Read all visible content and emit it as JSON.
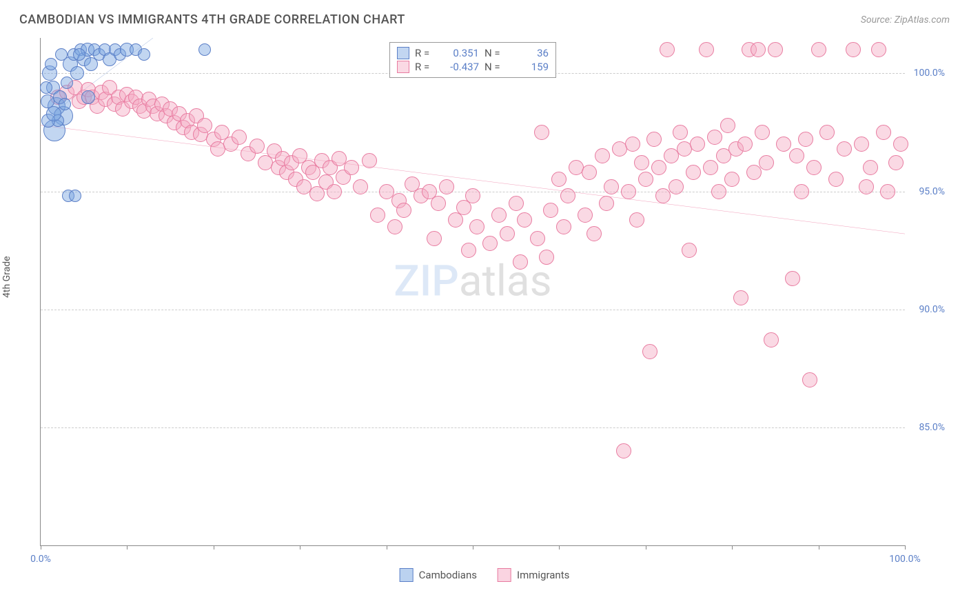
{
  "title": "CAMBODIAN VS IMMIGRANTS 4TH GRADE CORRELATION CHART",
  "source": "Source: ZipAtlas.com",
  "ylabel": "4th Grade",
  "watermark": {
    "bold": "ZIP",
    "light": "atlas"
  },
  "chart": {
    "type": "scatter",
    "xlim": [
      0,
      100
    ],
    "ylim": [
      80,
      101.5
    ],
    "xticks": [
      0,
      10,
      20,
      30,
      40,
      50,
      60,
      70,
      80,
      90,
      100
    ],
    "xticks_labeled": {
      "0": "0.0%",
      "100": "100.0%"
    },
    "yticks": [
      85,
      90,
      95,
      100
    ],
    "ytick_labels": [
      "85.0%",
      "90.0%",
      "95.0%",
      "100.0%"
    ],
    "background_color": "#ffffff",
    "grid_color": "#cccccc",
    "axis_color": "#888888",
    "tick_label_color": "#5b7fc7"
  },
  "series": {
    "cambodians": {
      "label": "Cambodians",
      "color_fill": "rgba(120,165,225,0.45)",
      "color_stroke": "#5b7fc7",
      "trend_color": "#2e5db5",
      "trend_width": 2,
      "default_radius": 9,
      "R": "0.351",
      "N": "36",
      "trend": {
        "x1": 1,
        "y1": 98.2,
        "x2": 13,
        "y2": 101.5
      },
      "points": [
        {
          "x": 1.0,
          "y": 100.0,
          "r": 11
        },
        {
          "x": 1.4,
          "y": 99.4,
          "r": 10
        },
        {
          "x": 1.8,
          "y": 98.6,
          "r": 13
        },
        {
          "x": 2.2,
          "y": 99.0,
          "r": 10
        },
        {
          "x": 2.6,
          "y": 98.2,
          "r": 14
        },
        {
          "x": 0.8,
          "y": 98.8,
          "r": 10
        },
        {
          "x": 3.0,
          "y": 99.6,
          "r": 9
        },
        {
          "x": 3.4,
          "y": 100.4,
          "r": 11
        },
        {
          "x": 3.8,
          "y": 100.8,
          "r": 9
        },
        {
          "x": 4.2,
          "y": 100.0,
          "r": 10
        },
        {
          "x": 4.6,
          "y": 101.0,
          "r": 9
        },
        {
          "x": 5.0,
          "y": 100.6,
          "r": 10
        },
        {
          "x": 5.4,
          "y": 101.0,
          "r": 10
        },
        {
          "x": 5.8,
          "y": 100.4,
          "r": 10
        },
        {
          "x": 6.2,
          "y": 101.0,
          "r": 9
        },
        {
          "x": 6.8,
          "y": 100.8,
          "r": 9
        },
        {
          "x": 7.4,
          "y": 101.0,
          "r": 9
        },
        {
          "x": 8.0,
          "y": 100.6,
          "r": 10
        },
        {
          "x": 8.6,
          "y": 101.0,
          "r": 9
        },
        {
          "x": 9.2,
          "y": 100.8,
          "r": 9
        },
        {
          "x": 10.0,
          "y": 101.0,
          "r": 10
        },
        {
          "x": 11.0,
          "y": 101.0,
          "r": 9
        },
        {
          "x": 12.0,
          "y": 100.8,
          "r": 9
        },
        {
          "x": 19.0,
          "y": 101.0,
          "r": 9
        },
        {
          "x": 1.6,
          "y": 97.6,
          "r": 16
        },
        {
          "x": 2.0,
          "y": 98.0,
          "r": 9
        },
        {
          "x": 0.6,
          "y": 99.4,
          "r": 9
        },
        {
          "x": 3.2,
          "y": 94.8,
          "r": 9
        },
        {
          "x": 4.0,
          "y": 94.8,
          "r": 9
        },
        {
          "x": 5.5,
          "y": 99.0,
          "r": 10
        },
        {
          "x": 1.2,
          "y": 100.4,
          "r": 9
        },
        {
          "x": 2.4,
          "y": 100.8,
          "r": 9
        },
        {
          "x": 0.9,
          "y": 98.0,
          "r": 10
        },
        {
          "x": 1.5,
          "y": 98.3,
          "r": 11
        },
        {
          "x": 2.8,
          "y": 98.7,
          "r": 9
        },
        {
          "x": 4.5,
          "y": 100.8,
          "r": 9
        }
      ]
    },
    "immigrants": {
      "label": "Immigrants",
      "color_fill": "rgba(245,170,195,0.45)",
      "color_stroke": "#e87ba0",
      "trend_color": "#e85b8a",
      "trend_width": 2.5,
      "default_radius": 11,
      "R": "-0.437",
      "N": "159",
      "trend": {
        "x1": 0,
        "y1": 97.8,
        "x2": 100,
        "y2": 93.2
      },
      "points": [
        {
          "x": 2,
          "y": 99.0
        },
        {
          "x": 3,
          "y": 99.2
        },
        {
          "x": 4,
          "y": 99.4
        },
        {
          "x": 4.5,
          "y": 98.8
        },
        {
          "x": 5,
          "y": 99.0
        },
        {
          "x": 5.5,
          "y": 99.3
        },
        {
          "x": 6,
          "y": 99.0
        },
        {
          "x": 6.5,
          "y": 98.6
        },
        {
          "x": 7,
          "y": 99.2
        },
        {
          "x": 7.5,
          "y": 98.9
        },
        {
          "x": 8,
          "y": 99.4
        },
        {
          "x": 8.5,
          "y": 98.7
        },
        {
          "x": 9,
          "y": 99.0
        },
        {
          "x": 9.5,
          "y": 98.5
        },
        {
          "x": 10,
          "y": 99.1
        },
        {
          "x": 10.5,
          "y": 98.8
        },
        {
          "x": 11,
          "y": 99.0
        },
        {
          "x": 11.5,
          "y": 98.6
        },
        {
          "x": 12,
          "y": 98.4
        },
        {
          "x": 12.5,
          "y": 98.9
        },
        {
          "x": 13,
          "y": 98.6
        },
        {
          "x": 13.5,
          "y": 98.3
        },
        {
          "x": 14,
          "y": 98.7
        },
        {
          "x": 14.5,
          "y": 98.2
        },
        {
          "x": 15,
          "y": 98.5
        },
        {
          "x": 15.5,
          "y": 97.9
        },
        {
          "x": 16,
          "y": 98.3
        },
        {
          "x": 16.5,
          "y": 97.7
        },
        {
          "x": 17,
          "y": 98.0
        },
        {
          "x": 17.5,
          "y": 97.5
        },
        {
          "x": 18,
          "y": 98.2
        },
        {
          "x": 18.5,
          "y": 97.4
        },
        {
          "x": 19,
          "y": 97.8
        },
        {
          "x": 20,
          "y": 97.2
        },
        {
          "x": 20.5,
          "y": 96.8
        },
        {
          "x": 21,
          "y": 97.5
        },
        {
          "x": 22,
          "y": 97.0
        },
        {
          "x": 23,
          "y": 97.3
        },
        {
          "x": 24,
          "y": 96.6
        },
        {
          "x": 25,
          "y": 96.9
        },
        {
          "x": 26,
          "y": 96.2
        },
        {
          "x": 27,
          "y": 96.7
        },
        {
          "x": 27.5,
          "y": 96.0
        },
        {
          "x": 28,
          "y": 96.4
        },
        {
          "x": 28.5,
          "y": 95.8
        },
        {
          "x": 29,
          "y": 96.2
        },
        {
          "x": 29.5,
          "y": 95.5
        },
        {
          "x": 30,
          "y": 96.5
        },
        {
          "x": 30.5,
          "y": 95.2
        },
        {
          "x": 31,
          "y": 96.0
        },
        {
          "x": 31.5,
          "y": 95.8
        },
        {
          "x": 32,
          "y": 94.9
        },
        {
          "x": 32.5,
          "y": 96.3
        },
        {
          "x": 33,
          "y": 95.4
        },
        {
          "x": 33.5,
          "y": 96.0
        },
        {
          "x": 34,
          "y": 95.0
        },
        {
          "x": 34.5,
          "y": 96.4
        },
        {
          "x": 35,
          "y": 95.6
        },
        {
          "x": 36,
          "y": 96.0
        },
        {
          "x": 37,
          "y": 95.2
        },
        {
          "x": 38,
          "y": 96.3
        },
        {
          "x": 39,
          "y": 94.0
        },
        {
          "x": 40,
          "y": 95.0
        },
        {
          "x": 41,
          "y": 93.5
        },
        {
          "x": 41.5,
          "y": 94.6
        },
        {
          "x": 42,
          "y": 94.2
        },
        {
          "x": 43,
          "y": 95.3
        },
        {
          "x": 44,
          "y": 94.8
        },
        {
          "x": 45,
          "y": 95.0
        },
        {
          "x": 45.5,
          "y": 93.0
        },
        {
          "x": 46,
          "y": 94.5
        },
        {
          "x": 47,
          "y": 95.2
        },
        {
          "x": 48,
          "y": 93.8
        },
        {
          "x": 49,
          "y": 94.3
        },
        {
          "x": 49.5,
          "y": 92.5
        },
        {
          "x": 50,
          "y": 94.8
        },
        {
          "x": 50.5,
          "y": 93.5
        },
        {
          "x": 51,
          "y": 101.0
        },
        {
          "x": 52,
          "y": 92.8
        },
        {
          "x": 53,
          "y": 94.0
        },
        {
          "x": 54,
          "y": 93.2
        },
        {
          "x": 55,
          "y": 94.5
        },
        {
          "x": 55.5,
          "y": 92.0
        },
        {
          "x": 56,
          "y": 93.8
        },
        {
          "x": 57,
          "y": 101.0
        },
        {
          "x": 57.5,
          "y": 93.0
        },
        {
          "x": 58,
          "y": 97.5
        },
        {
          "x": 58.5,
          "y": 92.2
        },
        {
          "x": 59,
          "y": 94.2
        },
        {
          "x": 60,
          "y": 95.5
        },
        {
          "x": 60.5,
          "y": 93.5
        },
        {
          "x": 61,
          "y": 94.8
        },
        {
          "x": 62,
          "y": 96.0
        },
        {
          "x": 63,
          "y": 94.0
        },
        {
          "x": 63.5,
          "y": 95.8
        },
        {
          "x": 64,
          "y": 93.2
        },
        {
          "x": 65,
          "y": 96.5
        },
        {
          "x": 65.5,
          "y": 94.5
        },
        {
          "x": 66,
          "y": 95.2
        },
        {
          "x": 67,
          "y": 96.8
        },
        {
          "x": 67.5,
          "y": 84.0
        },
        {
          "x": 68,
          "y": 95.0
        },
        {
          "x": 68.5,
          "y": 97.0
        },
        {
          "x": 69,
          "y": 93.8
        },
        {
          "x": 69.5,
          "y": 96.2
        },
        {
          "x": 70,
          "y": 95.5
        },
        {
          "x": 70.5,
          "y": 88.2
        },
        {
          "x": 71,
          "y": 97.2
        },
        {
          "x": 71.5,
          "y": 96.0
        },
        {
          "x": 72,
          "y": 94.8
        },
        {
          "x": 72.5,
          "y": 101.0
        },
        {
          "x": 73,
          "y": 96.5
        },
        {
          "x": 73.5,
          "y": 95.2
        },
        {
          "x": 74,
          "y": 97.5
        },
        {
          "x": 74.5,
          "y": 96.8
        },
        {
          "x": 75,
          "y": 92.5
        },
        {
          "x": 75.5,
          "y": 95.8
        },
        {
          "x": 76,
          "y": 97.0
        },
        {
          "x": 77,
          "y": 101.0
        },
        {
          "x": 77.5,
          "y": 96.0
        },
        {
          "x": 78,
          "y": 97.3
        },
        {
          "x": 78.5,
          "y": 95.0
        },
        {
          "x": 79,
          "y": 96.5
        },
        {
          "x": 79.5,
          "y": 97.8
        },
        {
          "x": 80,
          "y": 95.5
        },
        {
          "x": 80.5,
          "y": 96.8
        },
        {
          "x": 81,
          "y": 90.5
        },
        {
          "x": 81.5,
          "y": 97.0
        },
        {
          "x": 82,
          "y": 101.0
        },
        {
          "x": 82.5,
          "y": 95.8
        },
        {
          "x": 83,
          "y": 101.0
        },
        {
          "x": 83.5,
          "y": 97.5
        },
        {
          "x": 84,
          "y": 96.2
        },
        {
          "x": 84.5,
          "y": 88.7
        },
        {
          "x": 85,
          "y": 101.0
        },
        {
          "x": 86,
          "y": 97.0
        },
        {
          "x": 87,
          "y": 91.3
        },
        {
          "x": 87.5,
          "y": 96.5
        },
        {
          "x": 88,
          "y": 95.0
        },
        {
          "x": 88.5,
          "y": 97.2
        },
        {
          "x": 89,
          "y": 87.0
        },
        {
          "x": 89.5,
          "y": 96.0
        },
        {
          "x": 90,
          "y": 101.0
        },
        {
          "x": 91,
          "y": 97.5
        },
        {
          "x": 92,
          "y": 95.5
        },
        {
          "x": 93,
          "y": 96.8
        },
        {
          "x": 94,
          "y": 101.0
        },
        {
          "x": 95,
          "y": 97.0
        },
        {
          "x": 95.5,
          "y": 95.2
        },
        {
          "x": 96,
          "y": 96.0
        },
        {
          "x": 97,
          "y": 101.0
        },
        {
          "x": 97.5,
          "y": 97.5
        },
        {
          "x": 98,
          "y": 95.0
        },
        {
          "x": 99,
          "y": 96.2
        },
        {
          "x": 99.5,
          "y": 97.0
        }
      ]
    }
  },
  "bottom_legend": [
    "Cambodians",
    "Immigrants"
  ]
}
